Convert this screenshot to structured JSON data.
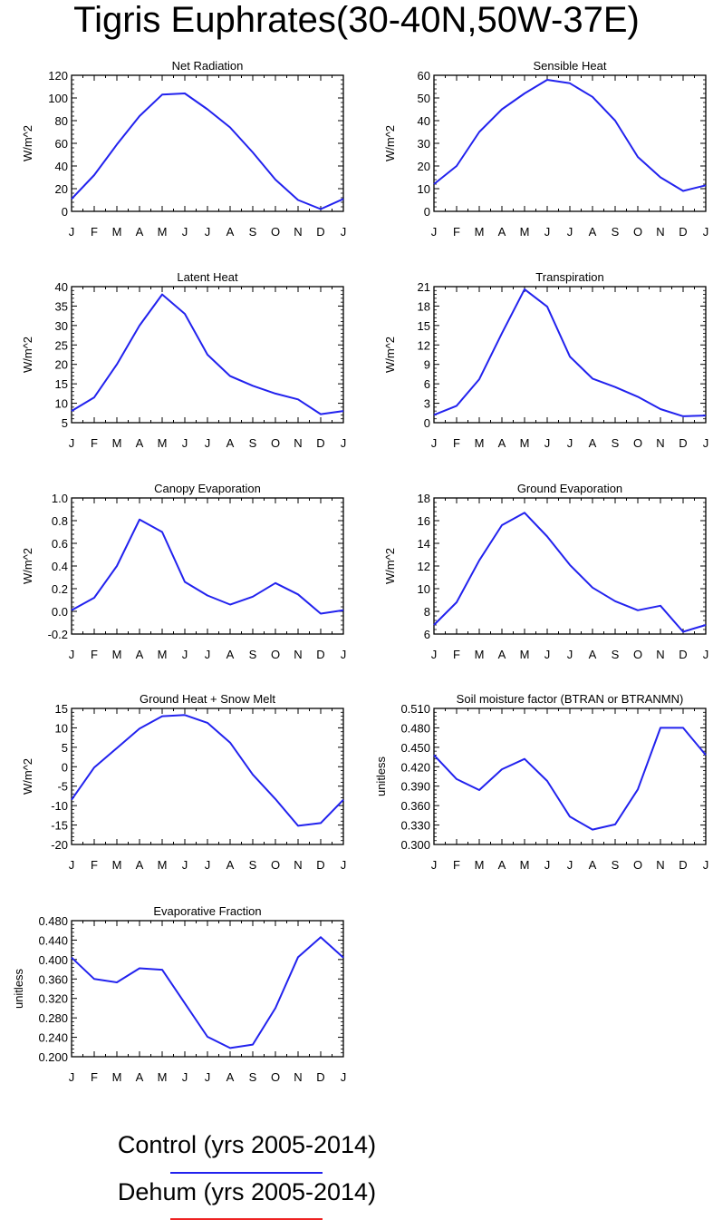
{
  "title": "Tigris Euphrates(30-40N,50W-37E)",
  "months": [
    "J",
    "F",
    "M",
    "A",
    "M",
    "J",
    "J",
    "A",
    "S",
    "O",
    "N",
    "D",
    "J"
  ],
  "legend": [
    {
      "label": "Control (yrs 2005-2014)",
      "color": "#2222ee"
    },
    {
      "label": "Dehum (yrs 2005-2014)",
      "color": "#ee2222"
    }
  ],
  "chart_data": [
    {
      "type": "line",
      "title": "Net Radiation",
      "ylabel": "W/m^2",
      "ylim": [
        0,
        120
      ],
      "yticks": [
        "0",
        "20",
        "40",
        "60",
        "80",
        "100",
        "120"
      ],
      "series": [
        {
          "values": [
            11,
            32,
            59,
            84,
            103,
            104,
            90,
            74,
            52,
            28,
            10,
            2,
            11
          ]
        }
      ]
    },
    {
      "type": "line",
      "title": "Sensible Heat",
      "ylabel": "W/m^2",
      "ylim": [
        0,
        60
      ],
      "yticks": [
        "0",
        "10",
        "20",
        "30",
        "40",
        "50",
        "60"
      ],
      "series": [
        {
          "values": [
            12,
            20,
            35,
            45,
            52,
            58,
            56.5,
            50.5,
            40,
            24,
            15,
            9,
            11.5
          ]
        }
      ]
    },
    {
      "type": "line",
      "title": "Latent Heat",
      "ylabel": "W/m^2",
      "ylim": [
        5,
        40
      ],
      "yticks": [
        "5",
        "10",
        "15",
        "20",
        "25",
        "30",
        "35",
        "40"
      ],
      "series": [
        {
          "values": [
            8,
            11.5,
            20,
            30,
            38,
            33,
            22.5,
            17,
            14.5,
            12.5,
            11,
            7.2,
            8
          ]
        }
      ]
    },
    {
      "type": "line",
      "title": "Transpiration",
      "ylabel": "W/m^2",
      "ylim": [
        0,
        21
      ],
      "yticks": [
        "0",
        "3",
        "6",
        "9",
        "12",
        "15",
        "18",
        "21"
      ],
      "series": [
        {
          "values": [
            1.2,
            2.6,
            6.7,
            13.8,
            20.6,
            17.9,
            10.2,
            6.8,
            5.5,
            4,
            2.1,
            1,
            1.1
          ]
        }
      ]
    },
    {
      "type": "line",
      "title": "Canopy Evaporation",
      "ylabel": "W/m^2",
      "ylim": [
        -0.2,
        1.0
      ],
      "yticks": [
        "-0.2",
        "0.0",
        "0.2",
        "0.4",
        "0.6",
        "0.8",
        "1.0"
      ],
      "series": [
        {
          "values": [
            0.01,
            0.12,
            0.4,
            0.81,
            0.7,
            0.26,
            0.14,
            0.06,
            0.13,
            0.25,
            0.15,
            -0.02,
            0.01
          ]
        }
      ]
    },
    {
      "type": "line",
      "title": "Ground Evaporation",
      "ylabel": "W/m^2",
      "ylim": [
        6,
        18
      ],
      "yticks": [
        "6",
        "8",
        "10",
        "12",
        "14",
        "16",
        "18"
      ],
      "series": [
        {
          "values": [
            6.8,
            8.8,
            12.5,
            15.6,
            16.7,
            14.6,
            12.1,
            10.1,
            8.9,
            8.1,
            8.5,
            6.2,
            6.8
          ]
        }
      ]
    },
    {
      "type": "line",
      "title": "Ground Heat + Snow Melt",
      "ylabel": "W/m^2",
      "ylim": [
        -20,
        15
      ],
      "yticks": [
        "-20",
        "-15",
        "-10",
        "-5",
        "0",
        "5",
        "10",
        "15"
      ],
      "series": [
        {
          "values": [
            -8.5,
            -0.2,
            4.8,
            9.8,
            13,
            13.3,
            11.3,
            6.2,
            -2,
            -8.3,
            -15.2,
            -14.5,
            -8.5
          ]
        }
      ]
    },
    {
      "type": "line",
      "title": "Soil moisture factor (BTRAN or BTRANMN)",
      "ylabel": "unitless",
      "ylim": [
        0.3,
        0.51
      ],
      "yticks": [
        "0.300",
        "0.330",
        "0.360",
        "0.390",
        "0.420",
        "0.450",
        "0.480",
        "0.510"
      ],
      "series": [
        {
          "values": [
            0.438,
            0.401,
            0.384,
            0.416,
            0.432,
            0.398,
            0.343,
            0.323,
            0.331,
            0.385,
            0.48,
            0.48,
            0.438
          ]
        }
      ]
    },
    {
      "type": "line",
      "title": "Evaporative Fraction",
      "ylabel": "unitless",
      "ylim": [
        0.2,
        0.48
      ],
      "yticks": [
        "0.200",
        "0.240",
        "0.280",
        "0.320",
        "0.360",
        "0.400",
        "0.440",
        "0.480"
      ],
      "series": [
        {
          "values": [
            0.404,
            0.36,
            0.353,
            0.382,
            0.379,
            0.31,
            0.241,
            0.218,
            0.225,
            0.3,
            0.405,
            0.446,
            0.404
          ]
        }
      ]
    }
  ]
}
